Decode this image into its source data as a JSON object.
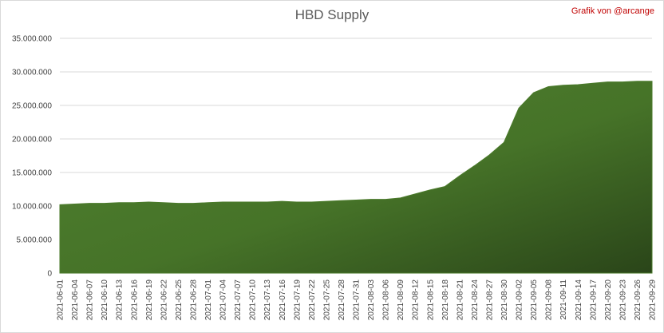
{
  "chart_data": {
    "type": "area",
    "title": "HBD Supply",
    "annotation": "Grafik von @arcange",
    "categories": [
      "2021-06-01",
      "2021-06-04",
      "2021-06-07",
      "2021-06-10",
      "2021-06-13",
      "2021-06-16",
      "2021-06-19",
      "2021-06-22",
      "2021-06-25",
      "2021-06-28",
      "2021-07-01",
      "2021-07-04",
      "2021-07-07",
      "2021-07-10",
      "2021-07-13",
      "2021-07-16",
      "2021-07-19",
      "2021-07-22",
      "2021-07-25",
      "2021-07-28",
      "2021-07-31",
      "2021-08-03",
      "2021-08-06",
      "2021-08-09",
      "2021-08-12",
      "2021-08-15",
      "2021-08-18",
      "2021-08-21",
      "2021-08-24",
      "2021-08-27",
      "2021-08-30",
      "2021-09-02",
      "2021-09-05",
      "2021-09-08",
      "2021-09-11",
      "2021-09-14",
      "2021-09-17",
      "2021-09-20",
      "2021-09-23",
      "2021-09-26",
      "2021-09-29"
    ],
    "values": [
      10200000,
      10300000,
      10400000,
      10400000,
      10500000,
      10500000,
      10600000,
      10500000,
      10400000,
      10400000,
      10500000,
      10600000,
      10600000,
      10600000,
      10600000,
      10700000,
      10600000,
      10600000,
      10700000,
      10800000,
      10900000,
      11000000,
      11000000,
      11200000,
      11800000,
      12400000,
      12900000,
      14500000,
      16000000,
      17600000,
      19500000,
      24600000,
      26900000,
      27800000,
      28000000,
      28100000,
      28300000,
      28500000,
      28500000,
      28600000,
      28600000
    ],
    "color": "#4a7a2a",
    "ylim": [
      0,
      35000000
    ],
    "yticks": [
      0,
      {
        "value": 5000000,
        "label": "5.000.000"
      },
      {
        "value": 10000000,
        "label": "10.000.000"
      },
      {
        "value": 15000000,
        "label": "15.000.000"
      },
      {
        "value": 20000000,
        "label": "20.000.000"
      },
      {
        "value": 25000000,
        "label": "25.000.000"
      },
      {
        "value": 30000000,
        "label": "30.000.000"
      },
      {
        "value": 35000000,
        "label": "35.000.000"
      }
    ],
    "grid": true
  }
}
